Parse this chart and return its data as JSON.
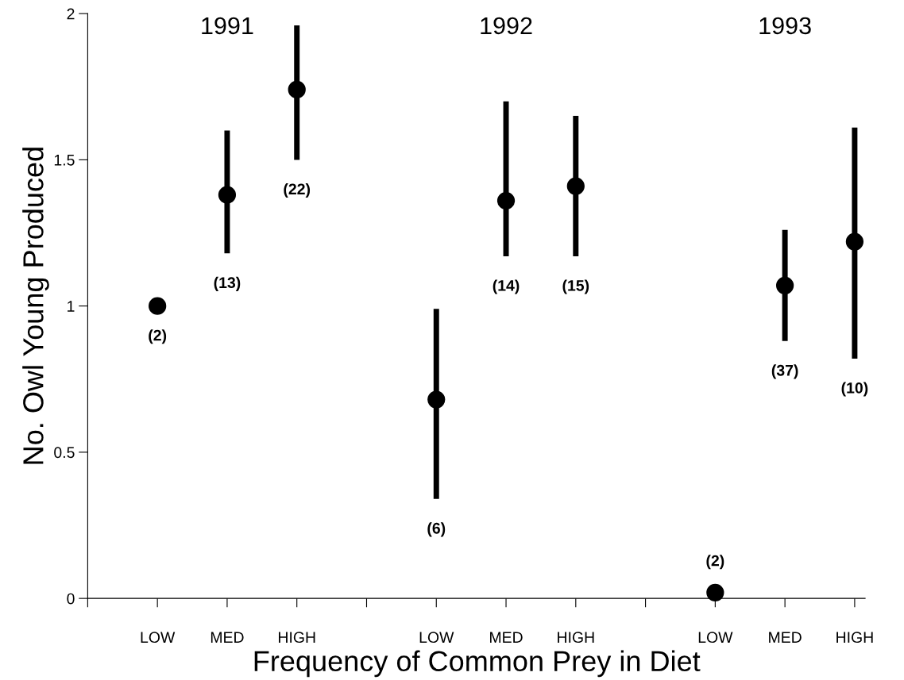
{
  "chart_data": {
    "type": "scatter",
    "xlabel": "Frequency of Common Prey in Diet",
    "ylabel": "No. Owl Young Produced",
    "categories": [
      "LOW",
      "MED",
      "HIGH",
      null,
      "LOW",
      "MED",
      "HIGH",
      null,
      "LOW",
      "MED",
      "HIGH"
    ],
    "series": [
      {
        "color": "#000000",
        "values": [
          1.0,
          1.38,
          1.74,
          null,
          0.68,
          1.36,
          1.41,
          null,
          0.02,
          1.07,
          1.22
        ],
        "errors": [
          null,
          [
            1.18,
            1.6
          ],
          [
            1.5,
            1.96
          ],
          null,
          [
            0.34,
            0.99
          ],
          [
            1.17,
            1.7
          ],
          [
            1.17,
            1.65
          ],
          null,
          null,
          [
            0.88,
            1.26
          ],
          [
            0.82,
            1.61
          ]
        ]
      }
    ],
    "ylim": [
      0,
      2
    ],
    "yticks": [
      0,
      0.5,
      1,
      1.5,
      2
    ],
    "marker": "circle",
    "grid": false,
    "annotations": [
      "1991",
      "1992",
      "1993",
      "(2)",
      "(13)",
      "(22)",
      "(6)",
      "(14)",
      "(15)",
      "(2)",
      "(37)",
      "(10)"
    ]
  }
}
